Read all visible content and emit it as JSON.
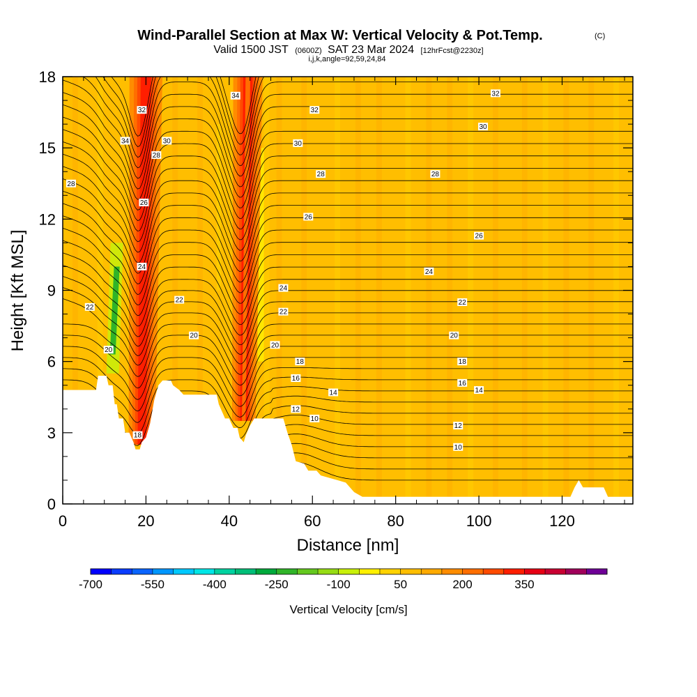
{
  "chart_data": {
    "type": "heatmap",
    "title": "Wind-Parallel Section at Max W: Vertical Velocity & Pot.Temp.",
    "title_units": "(C)",
    "subtitle_prefix": "Valid 1500 JST",
    "subtitle_zulu": "(0600Z)",
    "subtitle_date": "SAT 23 Mar 2024",
    "subtitle_fcst": "[12hrFcst@2230z]",
    "subtitle_line3": "i,j,k,angle=92,59,24,84",
    "xlabel": "Distance [nm]",
    "ylabel": "Height [Kft MSL]",
    "xlim": [
      0,
      137
    ],
    "ylim": [
      0,
      18
    ],
    "x_ticks": [
      0,
      20,
      40,
      60,
      80,
      100,
      120
    ],
    "x_tick_labels": [
      "0",
      "20",
      "40",
      "60",
      "80",
      "100",
      "120"
    ],
    "y_ticks": [
      0,
      3,
      6,
      9,
      12,
      15,
      18
    ],
    "y_tick_labels": [
      "0",
      "3",
      "6",
      "9",
      "12",
      "15",
      "18"
    ],
    "colorbar": {
      "title": "Vertical Velocity [cm/s]",
      "min": -700,
      "max": 500,
      "step": 50,
      "tick_values": [
        -700,
        -550,
        -400,
        -250,
        -100,
        50,
        200,
        350
      ],
      "tick_labels": [
        "-700",
        "-550",
        "-400",
        "-250",
        "-100",
        "50",
        "200",
        "350"
      ],
      "colors": [
        "#0000ff",
        "#0a3cff",
        "#0a64ff",
        "#0096ff",
        "#00c8ff",
        "#00e6e6",
        "#00d2a0",
        "#00be78",
        "#00aa3c",
        "#30b428",
        "#64c81e",
        "#96dc14",
        "#c8f00a",
        "#fff000",
        "#ffd200",
        "#ffbe00",
        "#ffaa00",
        "#ff8c00",
        "#ff6e00",
        "#ff4b00",
        "#ff1e00",
        "#e60014",
        "#c80032",
        "#a0005a",
        "#6e0096"
      ]
    },
    "background_fill": "#ffbe00",
    "updraft_bands": [
      {
        "x_top": 20,
        "x_bottom": 19,
        "y_bottom": 2.5,
        "w": 1.8,
        "level": 300
      },
      {
        "x_top": 44.5,
        "x_bottom": 43.5,
        "y_bottom": 3.5,
        "w": 1.6,
        "level": 200
      }
    ],
    "downdraft_bands": [
      {
        "x_top": 13,
        "x_bottom": 12,
        "y_from": 5.5,
        "y_to": 11,
        "w": 1.5,
        "level": -250
      }
    ],
    "terrain": [
      [
        0,
        4.8
      ],
      [
        8,
        4.8
      ],
      [
        8.5,
        5.4
      ],
      [
        10.5,
        5.4
      ],
      [
        11,
        5.0
      ],
      [
        12,
        5.0
      ],
      [
        12.5,
        4.2
      ],
      [
        13,
        4.2
      ],
      [
        13.5,
        3.6
      ],
      [
        14.5,
        3.6
      ],
      [
        15,
        3.0
      ],
      [
        16,
        3.0
      ],
      [
        17,
        2.6
      ],
      [
        17.5,
        2.3
      ],
      [
        18.5,
        2.3
      ],
      [
        19,
        2.6
      ],
      [
        20,
        2.8
      ],
      [
        21,
        3.4
      ],
      [
        22,
        4.4
      ],
      [
        23,
        5.0
      ],
      [
        24,
        5.2
      ],
      [
        26,
        5.2
      ],
      [
        26.5,
        5.0
      ],
      [
        28,
        4.8
      ],
      [
        29,
        4.6
      ],
      [
        37,
        4.6
      ],
      [
        37.5,
        4.2
      ],
      [
        38.5,
        3.8
      ],
      [
        39,
        3.6
      ],
      [
        40,
        3.6
      ],
      [
        40.5,
        3.4
      ],
      [
        41,
        3.2
      ],
      [
        42,
        3.2
      ],
      [
        42.5,
        2.8
      ],
      [
        43.5,
        2.6
      ],
      [
        44,
        2.9
      ],
      [
        45,
        3.3
      ],
      [
        46,
        3.6
      ],
      [
        53,
        3.6
      ],
      [
        54,
        3.0
      ],
      [
        55,
        2.5
      ],
      [
        56,
        1.8
      ],
      [
        58,
        1.7
      ],
      [
        59,
        1.4
      ],
      [
        61,
        1.4
      ],
      [
        62,
        1.2
      ],
      [
        64,
        1.1
      ],
      [
        66,
        1.0
      ],
      [
        68,
        0.9
      ],
      [
        70,
        0.5
      ],
      [
        72,
        0.3
      ],
      [
        122,
        0.3
      ],
      [
        123,
        0.7
      ],
      [
        124,
        1.0
      ],
      [
        125,
        0.7
      ],
      [
        130,
        0.7
      ],
      [
        131,
        0.3
      ],
      [
        137,
        0.3
      ]
    ],
    "contour_labels": [
      {
        "text": "32",
        "x": 19,
        "y": 16.6
      },
      {
        "text": "34",
        "x": 15,
        "y": 15.3
      },
      {
        "text": "30",
        "x": 25,
        "y": 15.3
      },
      {
        "text": "28",
        "x": 22.5,
        "y": 14.7
      },
      {
        "text": "26",
        "x": 19.5,
        "y": 12.7
      },
      {
        "text": "24",
        "x": 19,
        "y": 10.0
      },
      {
        "text": "22",
        "x": 28,
        "y": 8.6
      },
      {
        "text": "20",
        "x": 31.5,
        "y": 7.1
      },
      {
        "text": "22",
        "x": 6.5,
        "y": 8.3
      },
      {
        "text": "20",
        "x": 11,
        "y": 6.5
      },
      {
        "text": "28",
        "x": 2,
        "y": 13.5
      },
      {
        "text": "18",
        "x": 18,
        "y": 2.9
      },
      {
        "text": "34",
        "x": 41.5,
        "y": 17.2
      },
      {
        "text": "32",
        "x": 60.5,
        "y": 16.6
      },
      {
        "text": "30",
        "x": 56.5,
        "y": 15.2
      },
      {
        "text": "28",
        "x": 62,
        "y": 13.9
      },
      {
        "text": "26",
        "x": 59,
        "y": 12.1
      },
      {
        "text": "24",
        "x": 53,
        "y": 9.1
      },
      {
        "text": "22",
        "x": 53,
        "y": 8.1
      },
      {
        "text": "20",
        "x": 51,
        "y": 6.7
      },
      {
        "text": "18",
        "x": 57,
        "y": 6.0
      },
      {
        "text": "16",
        "x": 56,
        "y": 5.3
      },
      {
        "text": "14",
        "x": 65,
        "y": 4.7
      },
      {
        "text": "12",
        "x": 56,
        "y": 4.0
      },
      {
        "text": "10",
        "x": 60.5,
        "y": 3.6
      },
      {
        "text": "32",
        "x": 104,
        "y": 17.3
      },
      {
        "text": "30",
        "x": 101,
        "y": 15.9
      },
      {
        "text": "28",
        "x": 89.5,
        "y": 13.9
      },
      {
        "text": "26",
        "x": 100,
        "y": 11.3
      },
      {
        "text": "24",
        "x": 88,
        "y": 9.8
      },
      {
        "text": "22",
        "x": 96,
        "y": 8.5
      },
      {
        "text": "20",
        "x": 94,
        "y": 7.1
      },
      {
        "text": "18",
        "x": 96,
        "y": 6.0
      },
      {
        "text": "16",
        "x": 96,
        "y": 5.1
      },
      {
        "text": "14",
        "x": 100,
        "y": 4.8
      },
      {
        "text": "12",
        "x": 95,
        "y": 3.3
      },
      {
        "text": "10",
        "x": 95,
        "y": 2.4
      }
    ]
  }
}
